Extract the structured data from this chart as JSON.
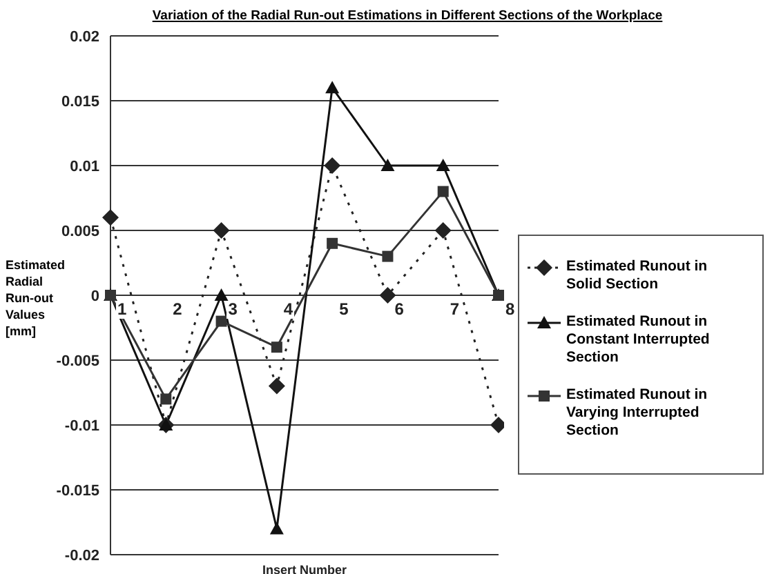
{
  "chart_data": {
    "type": "line",
    "title": "Variation of the Radial Run-out Estimations in Different Sections of the Workplace",
    "xlabel": "Insert Number",
    "ylabel": "Estimated Radial Run-out Values [mm]",
    "categories": [
      "1",
      "2",
      "3",
      "4",
      "5",
      "6",
      "7",
      "8"
    ],
    "series": [
      {
        "name": "Estimated Runout in Solid Section",
        "color": "#222222",
        "marker": "diamond",
        "line_style": "dotted",
        "values": [
          0.006,
          -0.01,
          0.005,
          -0.007,
          0.01,
          0,
          0.005,
          -0.01
        ]
      },
      {
        "name": "Estimated Runout in Constant Interrupted Section",
        "color": "#111111",
        "marker": "triangle",
        "line_style": "solid",
        "values": [
          0,
          -0.01,
          0,
          -0.018,
          0.016,
          0.01,
          0.01,
          0
        ]
      },
      {
        "name": "Estimated Runout in Varying Interrupted Section",
        "color": "#333333",
        "marker": "square",
        "line_style": "solid",
        "values": [
          0,
          -0.008,
          -0.002,
          -0.004,
          0.004,
          0.003,
          0.008,
          0
        ]
      }
    ],
    "ylim": [
      -0.02,
      0.02
    ],
    "yticks": [
      -0.02,
      -0.015,
      -0.01,
      -0.005,
      0,
      0.005,
      0.01,
      0.015,
      0.02
    ],
    "grid": "y",
    "legend": "right"
  }
}
